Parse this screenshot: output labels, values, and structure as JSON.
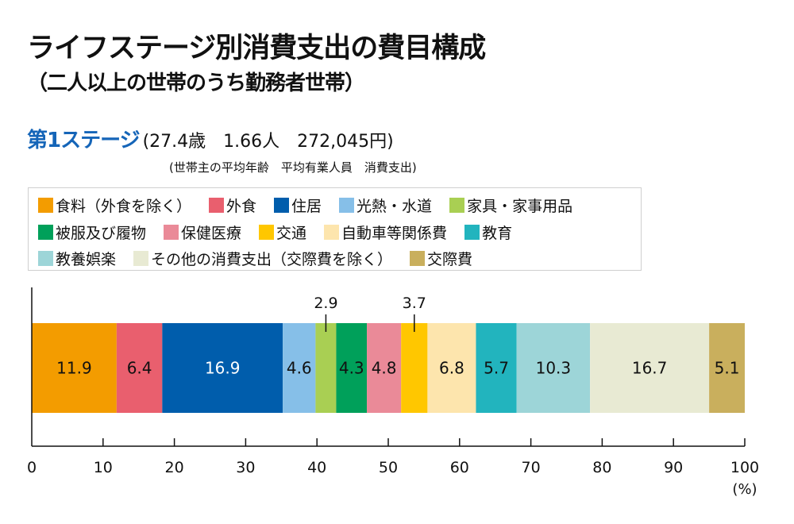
{
  "header": {
    "title": "ライフステージ別消費支出の費目構成",
    "subtitle": "（二人以上の世帯のうち勤務者世帯）"
  },
  "stage": {
    "name": "第1ステージ",
    "values_text": "(27.4歳　1.66人　272,045円)",
    "caption": "(世帯主の平均年齢　平均有業人員　消費支出)",
    "avg_age": "27.4歳",
    "earners": "1.66人",
    "spending": "272,045円",
    "accent_color": "#1565b8"
  },
  "legend": {
    "rows": [
      [
        {
          "label": "食料（外食を除く）",
          "color": "#f39c00"
        },
        {
          "label": "外食",
          "color": "#e95f6e"
        },
        {
          "label": "住居",
          "color": "#005dac"
        },
        {
          "label": "光熱・水道",
          "color": "#86bfe8"
        },
        {
          "label": "家具・家事用品",
          "color": "#a9cf53"
        }
      ],
      [
        {
          "label": "被服及び履物",
          "color": "#00a05a"
        },
        {
          "label": "保健医療",
          "color": "#ea8a98"
        },
        {
          "label": "交通",
          "color": "#ffc700"
        },
        {
          "label": "自動車等関係費",
          "color": "#fde5ad"
        },
        {
          "label": "教育",
          "color": "#22b4be"
        }
      ],
      [
        {
          "label": "教養娯楽",
          "color": "#9dd5d8"
        },
        {
          "label": "その他の消費支出（交際費を除く）",
          "color": "#e8ead3"
        },
        {
          "label": "交際費",
          "color": "#c9af5d"
        }
      ]
    ]
  },
  "chart_data": {
    "type": "bar",
    "orientation": "horizontal-stacked",
    "title": "ライフステージ別消費支出の費目構成",
    "subtitle": "（二人以上の世帯のうち勤務者世帯）",
    "categories": [
      "第1ステージ"
    ],
    "series": [
      {
        "name": "食料（外食を除く）",
        "values": [
          11.9
        ],
        "color": "#f39c00",
        "label_color": "#111111",
        "label_position": "inside"
      },
      {
        "name": "外食",
        "values": [
          6.4
        ],
        "color": "#e95f6e",
        "label_color": "#111111",
        "label_position": "inside"
      },
      {
        "name": "住居",
        "values": [
          16.9
        ],
        "color": "#005dac",
        "label_color": "#ffffff",
        "label_position": "inside"
      },
      {
        "name": "光熱・水道",
        "values": [
          4.6
        ],
        "color": "#86bfe8",
        "label_color": "#111111",
        "label_position": "inside"
      },
      {
        "name": "家具・家事用品",
        "values": [
          2.9
        ],
        "color": "#a9cf53",
        "label_color": "#111111",
        "label_position": "above"
      },
      {
        "name": "被服及び履物",
        "values": [
          4.3
        ],
        "color": "#00a05a",
        "label_color": "#111111",
        "label_position": "inside"
      },
      {
        "name": "保健医療",
        "values": [
          4.8
        ],
        "color": "#ea8a98",
        "label_color": "#111111",
        "label_position": "inside"
      },
      {
        "name": "交通",
        "values": [
          3.7
        ],
        "color": "#ffc700",
        "label_color": "#111111",
        "label_position": "above"
      },
      {
        "name": "自動車等関係費",
        "values": [
          6.8
        ],
        "color": "#fde5ad",
        "label_color": "#111111",
        "label_position": "inside"
      },
      {
        "name": "教育",
        "values": [
          5.7
        ],
        "color": "#22b4be",
        "label_color": "#111111",
        "label_position": "inside"
      },
      {
        "name": "教養娯楽",
        "values": [
          10.3
        ],
        "color": "#9dd5d8",
        "label_color": "#111111",
        "label_position": "inside"
      },
      {
        "name": "その他の消費支出（交際費を除く）",
        "values": [
          16.7
        ],
        "color": "#e8ead3",
        "label_color": "#111111",
        "label_position": "inside"
      },
      {
        "name": "交際費",
        "values": [
          5.1
        ],
        "color": "#c9af5d",
        "label_color": "#111111",
        "label_position": "inside"
      }
    ],
    "xlabel": "(%)",
    "ylabel": "",
    "xlim": [
      0,
      100
    ],
    "xticks": [
      0,
      10,
      20,
      30,
      40,
      50,
      60,
      70,
      80,
      90,
      100
    ],
    "grid": false,
    "legend_position": "top"
  }
}
